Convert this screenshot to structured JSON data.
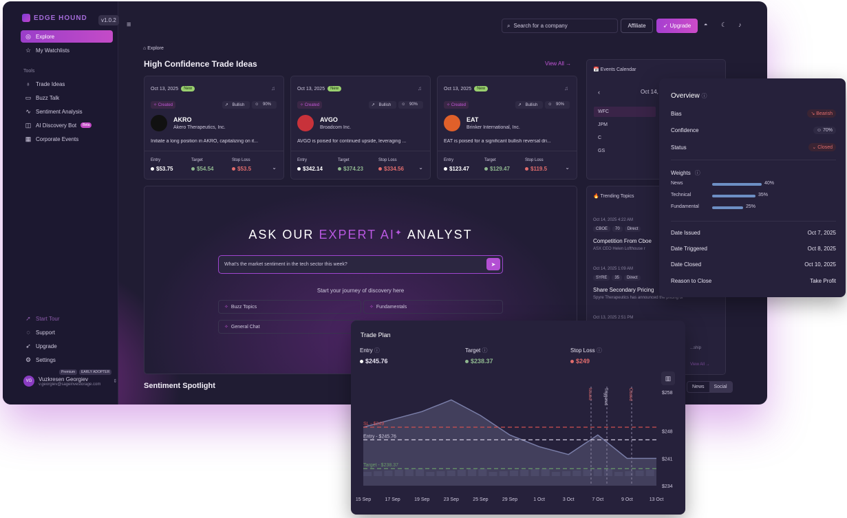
{
  "brand": {
    "name": "EDGE HOUND",
    "version": "v1.0.2"
  },
  "sidebar": {
    "main": [
      {
        "label": "Explore",
        "icon": "compass-icon"
      },
      {
        "label": "My Watchlists",
        "icon": "star-icon"
      }
    ],
    "tools_label": "Tools",
    "tools": [
      {
        "label": "Trade Ideas",
        "icon": "bulb-icon"
      },
      {
        "label": "Buzz Talk",
        "icon": "chat-icon"
      },
      {
        "label": "Sentiment Analysis",
        "icon": "pulse-icon"
      },
      {
        "label": "AI Discovery Bot",
        "icon": "bot-icon",
        "badge": "Beta"
      },
      {
        "label": "Corporate Events",
        "icon": "calendar-icon"
      }
    ],
    "bottom": [
      {
        "label": "Start Tour"
      },
      {
        "label": "Support"
      },
      {
        "label": "Upgrade"
      },
      {
        "label": "Settings"
      }
    ],
    "user": {
      "initials": "VG",
      "name": "Vuzkresen Georgiev",
      "email": "v.georgiev@sageinvestorage.com",
      "tags": [
        "Premium",
        "EARLY ADOPTER"
      ]
    }
  },
  "topbar": {
    "search_placeholder": "Search for a company",
    "affiliate": "Affiliate",
    "upgrade": "Upgrade"
  },
  "breadcrumb": "Explore",
  "section_title": "High Confidence Trade Ideas",
  "view_all": "View All →",
  "cards": [
    {
      "date": "Oct 13, 2025",
      "badge": "New",
      "status": "Created",
      "trend": "Bullish",
      "confidence": "90%",
      "ticker": "AKRO",
      "company": "Akero Therapeutics, Inc.",
      "desc": "Initiate a long position in AKRO, capitalizing on it...",
      "entry": "$53.75",
      "target": "$54.54",
      "stop": "$53.5",
      "logo_color": "#111"
    },
    {
      "date": "Oct 13, 2025",
      "badge": "New",
      "status": "Created",
      "trend": "Bullish",
      "confidence": "90%",
      "ticker": "AVGO",
      "company": "Broadcom Inc.",
      "desc": "AVGO is poised for continued upside, leveraging ...",
      "entry": "$342.14",
      "target": "$374.23",
      "stop": "$334.56",
      "logo_color": "#c8323a"
    },
    {
      "date": "Oct 13, 2025",
      "badge": "New",
      "status": "Created",
      "trend": "Bullish",
      "confidence": "90%",
      "ticker": "EAT",
      "company": "Brinker International, Inc.",
      "desc": "EAT is poised for a significant bullish reversal dri...",
      "entry": "$123.47",
      "target": "$129.47",
      "stop": "$119.5",
      "logo_color": "#e0602a"
    }
  ],
  "labels": {
    "entry": "Entry",
    "target": "Target",
    "stop": "Stop Loss"
  },
  "ai": {
    "title_a": "ASK OUR ",
    "title_hl": "EXPERT AI",
    "title_b": " ANALYST",
    "input": "What's the market sentiment in the tech sector this week?",
    "subtitle": "Start your journey of discovery here",
    "chips": [
      "Buzz Topics",
      "Fundamentals",
      "General Chat"
    ]
  },
  "sentiment_title": "Sentiment Spotlight",
  "events": {
    "title": "📅 Events Calendar",
    "date": "Oct 14,",
    "rows": [
      "WFC",
      "JPM",
      "C",
      "GS"
    ]
  },
  "trending": {
    "title": "🔥 Trending Topics",
    "items": [
      {
        "date": "Oct 14, 2025 4:22 AM",
        "tags": [
          "CBOE",
          "70",
          "Direct"
        ],
        "head": "Competition From Cboe",
        "sub": "ASX CEO Helen Lofthouse r"
      },
      {
        "date": "Oct 14, 2025 1:09 AM",
        "tags": [
          "SYRE",
          "35",
          "Direct"
        ],
        "head": "Share Secondary Pricing",
        "sub": "Spyre Therapeutics has announced the pricing of"
      },
      {
        "date": "Oct 13, 2025 2:51 PM",
        "tags": [],
        "head": "",
        "sub": "...ship"
      }
    ],
    "view_all": "View All →"
  },
  "segment": [
    "News",
    "Social"
  ],
  "overview": {
    "title": "Overview",
    "bias": {
      "label": "Bias",
      "value": "Bearish"
    },
    "confidence": {
      "label": "Confidence",
      "value": "70%"
    },
    "status": {
      "label": "Status",
      "value": "Closed"
    },
    "weights_title": "Weights",
    "weights": [
      {
        "label": "News",
        "pct": "40%",
        "frac": 0.4
      },
      {
        "label": "Technical",
        "pct": "35%",
        "frac": 0.35
      },
      {
        "label": "Fundamental",
        "pct": "25%",
        "frac": 0.25
      }
    ],
    "rows": [
      {
        "label": "Date Issued",
        "value": "Oct 7, 2025"
      },
      {
        "label": "Date Triggered",
        "value": "Oct 8, 2025"
      },
      {
        "label": "Date Closed",
        "value": "Oct 10, 2025"
      },
      {
        "label": "Reason to Close",
        "value": "Take Profit"
      }
    ]
  },
  "trade_plan": {
    "title": "Trade Plan",
    "entry": {
      "label": "Entry",
      "value": "$245.76"
    },
    "target": {
      "label": "Target",
      "value": "$238.37"
    },
    "stop": {
      "label": "Stop Loss",
      "value": "$249"
    }
  },
  "chart_data": {
    "type": "line",
    "x": [
      "15 Sep",
      "17 Sep",
      "19 Sep",
      "23 Sep",
      "25 Sep",
      "29 Sep",
      "1 Oct",
      "3 Oct",
      "7 Oct",
      "9 Oct",
      "13 Oct"
    ],
    "values": [
      249,
      251,
      253,
      256,
      252,
      247,
      244,
      242,
      247,
      241,
      241
    ],
    "yticks": [
      "$258",
      "$248",
      "$241",
      "$234"
    ],
    "ylim": [
      234,
      258
    ],
    "lines": [
      {
        "name": "SL - $249",
        "value": 249,
        "color": "#d05050"
      },
      {
        "name": "Entry - $245.76",
        "value": 245.76,
        "color": "#cfc9de"
      },
      {
        "name": "Target - $238.37",
        "value": 238.37,
        "color": "#6a9a6a"
      }
    ],
    "markers": [
      "Issued",
      "Triggered",
      "Closed"
    ]
  },
  "colors": {
    "accent": "#c256d8",
    "bg": "#201c33",
    "card": "#26213b",
    "red": "#e06c6c",
    "green": "#8fb78f"
  }
}
